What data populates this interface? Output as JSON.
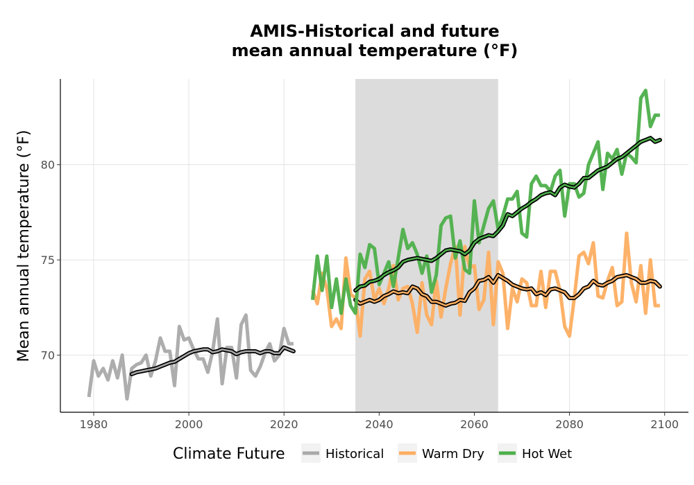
{
  "chart_data": {
    "type": "line",
    "title_line1": "AMIS-Historical and future",
    "title_line2": "mean annual temperature (°F)",
    "xlabel": "",
    "ylabel": "Mean annual temperature (°F)",
    "xlim": [
      1973,
      2105
    ],
    "ylim": [
      67,
      84.5
    ],
    "x_ticks": [
      1980,
      2000,
      2020,
      2040,
      2060,
      2080,
      2100
    ],
    "y_ticks": [
      70,
      75,
      80
    ],
    "grid": true,
    "shaded_period": [
      2035,
      2065
    ],
    "colors": {
      "shade": "#dcdcdc",
      "Historical": "#a9a9a9",
      "Warm Dry": "#fdae61",
      "Hot Wet": "#4daf4a",
      "smooth": "#000000"
    },
    "legend": {
      "title": "Climate Future",
      "position": "bottom",
      "items": [
        "Historical",
        "Warm Dry",
        "Hot Wet"
      ]
    },
    "series": [
      {
        "name": "Historical",
        "x": [
          1979,
          1980,
          1981,
          1982,
          1983,
          1984,
          1985,
          1986,
          1987,
          1988,
          1989,
          1990,
          1991,
          1992,
          1993,
          1994,
          1995,
          1996,
          1997,
          1998,
          1999,
          2000,
          2001,
          2002,
          2003,
          2004,
          2005,
          2006,
          2007,
          2008,
          2009,
          2010,
          2011,
          2012,
          2013,
          2014,
          2015,
          2016,
          2017,
          2018,
          2019,
          2020,
          2021,
          2022
        ],
        "values": [
          67.8,
          69.7,
          68.9,
          69.3,
          68.7,
          69.7,
          68.8,
          70.0,
          67.7,
          69.3,
          69.5,
          69.6,
          70.0,
          68.9,
          69.7,
          70.9,
          70.2,
          70.2,
          68.4,
          71.5,
          70.8,
          70.9,
          70.3,
          69.8,
          69.8,
          69.1,
          70.2,
          71.9,
          68.5,
          70.4,
          70.4,
          68.8,
          71.6,
          72.1,
          69.2,
          68.9,
          69.4,
          70.1,
          70.6,
          69.7,
          70.0,
          71.4,
          70.6,
          70.6
        ]
      },
      {
        "name": "Historical smoothed",
        "x": [
          1988,
          1989,
          1990,
          1991,
          1992,
          1993,
          1994,
          1995,
          1996,
          1997,
          1998,
          1999,
          2000,
          2001,
          2002,
          2003,
          2004,
          2005,
          2006,
          2007,
          2008,
          2009,
          2010,
          2011,
          2012,
          2013,
          2014,
          2015,
          2016,
          2017,
          2018,
          2019,
          2020,
          2021,
          2022
        ],
        "values": [
          69.0,
          69.1,
          69.15,
          69.2,
          69.25,
          69.3,
          69.4,
          69.5,
          69.6,
          69.65,
          69.8,
          69.95,
          70.1,
          70.2,
          70.25,
          70.3,
          70.3,
          70.15,
          70.2,
          70.3,
          70.25,
          70.2,
          70.05,
          70.15,
          70.2,
          70.2,
          70.2,
          70.1,
          70.2,
          70.2,
          70.1,
          70.1,
          70.4,
          70.3,
          70.2
        ]
      },
      {
        "name": "Warm Dry",
        "x": [
          2026,
          2027,
          2028,
          2029,
          2030,
          2031,
          2032,
          2033,
          2034,
          2035,
          2036,
          2037,
          2038,
          2039,
          2040,
          2041,
          2042,
          2043,
          2044,
          2045,
          2046,
          2047,
          2048,
          2049,
          2050,
          2051,
          2052,
          2053,
          2054,
          2055,
          2056,
          2057,
          2058,
          2059,
          2060,
          2061,
          2062,
          2063,
          2064,
          2065,
          2066,
          2067,
          2068,
          2069,
          2070,
          2071,
          2072,
          2073,
          2074,
          2075,
          2076,
          2077,
          2078,
          2079,
          2080,
          2081,
          2082,
          2083,
          2084,
          2085,
          2086,
          2087,
          2088,
          2089,
          2090,
          2091,
          2092,
          2093,
          2094,
          2095,
          2096,
          2097,
          2098,
          2099
        ],
        "values": [
          73.4,
          72.7,
          74.3,
          73.5,
          71.5,
          71.9,
          71.4,
          75.1,
          73.2,
          73.0,
          71.0,
          74.0,
          74.4,
          72.9,
          73.5,
          72.7,
          73.5,
          74.7,
          72.9,
          73.5,
          73.6,
          72.7,
          71.2,
          73.8,
          72.1,
          71.6,
          73.9,
          72.0,
          73.5,
          74.8,
          75.7,
          72.1,
          75.7,
          74.6,
          74.7,
          72.4,
          72.9,
          75.4,
          71.6,
          74.9,
          74.3,
          71.4,
          73.5,
          72.8,
          74.0,
          73.8,
          72.6,
          72.6,
          74.4,
          72.5,
          74.4,
          74.4,
          73.4,
          71.5,
          71.0,
          73.0,
          75.2,
          75.4,
          74.8,
          75.9,
          73.1,
          73.0,
          73.9,
          74.6,
          72.6,
          72.8,
          76.4,
          73.8,
          72.8,
          74.7,
          72.2,
          75.0,
          72.6,
          72.6
        ]
      },
      {
        "name": "Warm Dry smoothed",
        "x": [
          2035,
          2036,
          2037,
          2038,
          2039,
          2040,
          2041,
          2042,
          2043,
          2044,
          2045,
          2046,
          2047,
          2048,
          2049,
          2050,
          2051,
          2052,
          2053,
          2054,
          2055,
          2056,
          2057,
          2058,
          2059,
          2060,
          2061,
          2062,
          2063,
          2064,
          2065,
          2066,
          2067,
          2068,
          2069,
          2070,
          2071,
          2072,
          2073,
          2074,
          2075,
          2076,
          2077,
          2078,
          2079,
          2080,
          2081,
          2082,
          2083,
          2084,
          2085,
          2086,
          2087,
          2088,
          2089,
          2090,
          2091,
          2092,
          2093,
          2094,
          2095,
          2096,
          2097,
          2098,
          2099
        ],
        "values": [
          72.9,
          72.7,
          72.8,
          72.9,
          72.8,
          72.9,
          73.1,
          73.2,
          73.35,
          73.25,
          73.3,
          73.25,
          73.6,
          73.5,
          73.2,
          73.1,
          72.8,
          72.8,
          72.7,
          72.6,
          72.7,
          72.75,
          72.9,
          72.85,
          73.3,
          73.5,
          73.9,
          73.95,
          74.1,
          73.8,
          74.2,
          74.05,
          73.9,
          73.7,
          73.6,
          73.5,
          73.45,
          73.5,
          73.2,
          73.3,
          73.15,
          73.45,
          73.5,
          73.4,
          73.3,
          73.0,
          73.0,
          73.2,
          73.5,
          73.6,
          73.9,
          73.7,
          73.65,
          73.8,
          73.9,
          74.1,
          74.15,
          74.2,
          74.1,
          74.0,
          73.8,
          73.8,
          73.9,
          73.85,
          73.6
        ]
      },
      {
        "name": "Hot Wet",
        "x": [
          2026,
          2027,
          2028,
          2029,
          2030,
          2031,
          2032,
          2033,
          2034,
          2035,
          2036,
          2037,
          2038,
          2039,
          2040,
          2041,
          2042,
          2043,
          2044,
          2045,
          2046,
          2047,
          2048,
          2049,
          2050,
          2051,
          2052,
          2053,
          2054,
          2055,
          2056,
          2057,
          2058,
          2059,
          2060,
          2061,
          2062,
          2063,
          2064,
          2065,
          2066,
          2067,
          2068,
          2069,
          2070,
          2071,
          2072,
          2073,
          2074,
          2075,
          2076,
          2077,
          2078,
          2079,
          2080,
          2081,
          2082,
          2083,
          2084,
          2085,
          2086,
          2087,
          2088,
          2089,
          2090,
          2091,
          2092,
          2093,
          2094,
          2095,
          2096,
          2097,
          2098,
          2099
        ],
        "values": [
          72.9,
          75.2,
          73.4,
          75.2,
          72.5,
          74.0,
          72.2,
          74.0,
          72.6,
          72.2,
          75.3,
          74.6,
          75.8,
          75.6,
          73.7,
          74.3,
          74.9,
          73.6,
          75.1,
          76.6,
          75.6,
          75.9,
          75.3,
          74.3,
          75.2,
          73.3,
          74.2,
          76.8,
          77.2,
          77.3,
          75.1,
          76.0,
          74.5,
          74.3,
          78.1,
          75.9,
          76.8,
          77.7,
          78.1,
          76.6,
          77.3,
          78.2,
          78.2,
          78.6,
          76.4,
          76.2,
          79.0,
          79.4,
          78.9,
          78.9,
          78.6,
          79.4,
          79.7,
          77.3,
          79.0,
          79.0,
          78.3,
          78.5,
          80.0,
          80.6,
          81.2,
          78.7,
          80.6,
          80.3,
          80.8,
          79.5,
          80.6,
          80.4,
          80.1,
          83.5,
          83.9,
          82.0,
          82.6,
          82.6
        ]
      },
      {
        "name": "Hot Wet smoothed",
        "x": [
          2035,
          2036,
          2037,
          2038,
          2039,
          2040,
          2041,
          2042,
          2043,
          2044,
          2045,
          2046,
          2047,
          2048,
          2049,
          2050,
          2051,
          2052,
          2053,
          2054,
          2055,
          2056,
          2057,
          2058,
          2059,
          2060,
          2061,
          2062,
          2063,
          2064,
          2065,
          2066,
          2067,
          2068,
          2069,
          2070,
          2071,
          2072,
          2073,
          2074,
          2075,
          2076,
          2077,
          2078,
          2079,
          2080,
          2081,
          2082,
          2083,
          2084,
          2085,
          2086,
          2087,
          2088,
          2089,
          2090,
          2091,
          2092,
          2093,
          2094,
          2095,
          2096,
          2097,
          2098,
          2099
        ],
        "values": [
          73.4,
          73.6,
          73.65,
          73.85,
          73.9,
          74.0,
          74.2,
          74.35,
          74.45,
          74.6,
          74.9,
          75.0,
          75.05,
          75.1,
          75.05,
          75.0,
          74.95,
          75.1,
          75.3,
          75.5,
          75.55,
          75.5,
          75.45,
          75.3,
          75.5,
          75.9,
          76.1,
          76.2,
          76.3,
          76.25,
          76.5,
          76.8,
          77.4,
          77.3,
          77.5,
          77.7,
          77.85,
          78.05,
          78.2,
          78.4,
          78.5,
          78.55,
          78.4,
          78.8,
          78.95,
          78.85,
          78.8,
          79.0,
          79.3,
          79.3,
          79.5,
          79.7,
          79.8,
          79.9,
          80.1,
          80.3,
          80.4,
          80.6,
          80.8,
          81.0,
          81.2,
          81.3,
          81.4,
          81.2,
          81.3
        ]
      }
    ]
  }
}
